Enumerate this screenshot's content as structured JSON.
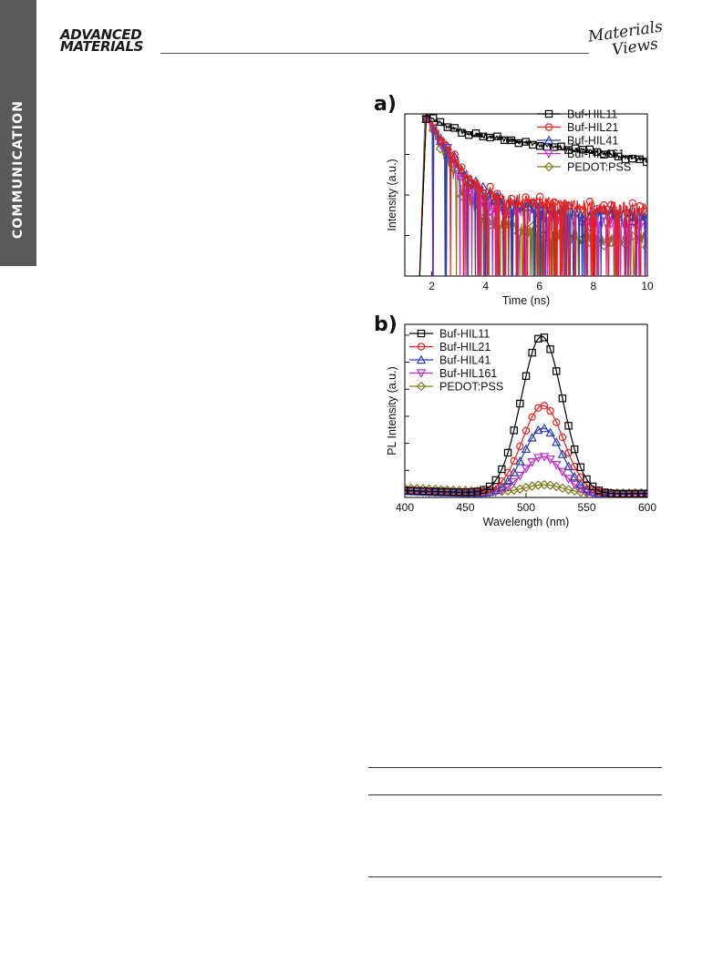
{
  "header": {
    "side_tab": "COMMUNICATION",
    "brand_line1": "ADVANCED",
    "brand_line2": "MATERIALS",
    "logo_line1": "Materials",
    "logo_line2": "Views"
  },
  "colors": {
    "Buf-HIL11": "#000000",
    "Buf-HIL21": "#e8201e",
    "Buf-HIL41": "#2a3fb0",
    "Buf-HIL161": "#c02ac8",
    "PEDOT:PSS": "#7e7a1e"
  },
  "chart_data": [
    {
      "panel": "a)",
      "type": "line",
      "xlabel": "Time (ns)",
      "ylabel": "Intensity (a.u.)",
      "xlim": [
        1,
        10
      ],
      "xticks": [
        2,
        4,
        6,
        8,
        10
      ],
      "y_scale": "log",
      "ylim_decades": [
        0,
        4
      ],
      "legend_position": "top-right",
      "series": [
        {
          "name": "Buf-HIL11",
          "marker": "square",
          "decay": {
            "rise_start": 1.55,
            "peak_time": 1.8,
            "fast_amp": 0.55,
            "fast_tau": 0.5,
            "slow_amp": 0.45,
            "slow_tau": 4.5
          },
          "noise_floor": 0.0,
          "noise": 0.12
        },
        {
          "name": "Buf-HIL21",
          "marker": "circle",
          "decay": {
            "rise_start": 1.55,
            "peak_time": 1.8,
            "fast_amp": 0.985,
            "fast_tau": 0.37,
            "slow_amp": 0.015,
            "slow_tau": 2.2
          },
          "noise_floor": 0.004,
          "noise": 0.35
        },
        {
          "name": "Buf-HIL41",
          "marker": "triangle-up",
          "decay": {
            "rise_start": 1.55,
            "peak_time": 1.8,
            "fast_amp": 0.985,
            "fast_tau": 0.36,
            "slow_amp": 0.015,
            "slow_tau": 2.0
          },
          "noise_floor": 0.003,
          "noise": 0.35
        },
        {
          "name": "Buf-HIL161",
          "marker": "triangle-down",
          "decay": {
            "rise_start": 1.55,
            "peak_time": 1.8,
            "fast_amp": 0.99,
            "fast_tau": 0.33,
            "slow_amp": 0.01,
            "slow_tau": 1.8
          },
          "noise_floor": 0.002,
          "noise": 0.35
        },
        {
          "name": "PEDOT:PSS",
          "marker": "diamond",
          "decay": {
            "rise_start": 1.55,
            "peak_time": 1.75,
            "fast_amp": 0.99,
            "fast_tau": 0.3,
            "slow_amp": 0.01,
            "slow_tau": 1.2
          },
          "noise_floor": 0.0008,
          "noise": 0.4
        }
      ]
    },
    {
      "panel": "b)",
      "type": "line",
      "xlabel": "Wavelength (nm)",
      "ylabel": "PL Intensity (a.u.)",
      "xlim": [
        400,
        600
      ],
      "xticks": [
        400,
        450,
        500,
        550,
        600
      ],
      "ylim": [
        0,
        1.1
      ],
      "legend_position": "top-left",
      "series": [
        {
          "name": "Buf-HIL11",
          "marker": "square",
          "gauss": {
            "amp": 1.0,
            "center": 513,
            "sigma": 17
          },
          "base": [
            0.045,
            0.015,
            0.025
          ]
        },
        {
          "name": "Buf-HIL21",
          "marker": "circle",
          "gauss": {
            "amp": 0.56,
            "center": 514,
            "sigma": 17
          },
          "base": [
            0.045,
            0.015,
            0.025
          ]
        },
        {
          "name": "Buf-HIL41",
          "marker": "triangle-up",
          "gauss": {
            "amp": 0.42,
            "center": 514,
            "sigma": 16
          },
          "base": [
            0.04,
            0.012,
            0.022
          ]
        },
        {
          "name": "Buf-HIL161",
          "marker": "triangle-down",
          "gauss": {
            "amp": 0.24,
            "center": 514,
            "sigma": 16
          },
          "base": [
            0.04,
            0.01,
            0.02
          ]
        },
        {
          "name": "PEDOT:PSS",
          "marker": "diamond",
          "gauss": {
            "amp": 0.05,
            "center": 515,
            "sigma": 15
          },
          "base": [
            0.06,
            0.02,
            0.03
          ]
        }
      ]
    }
  ]
}
